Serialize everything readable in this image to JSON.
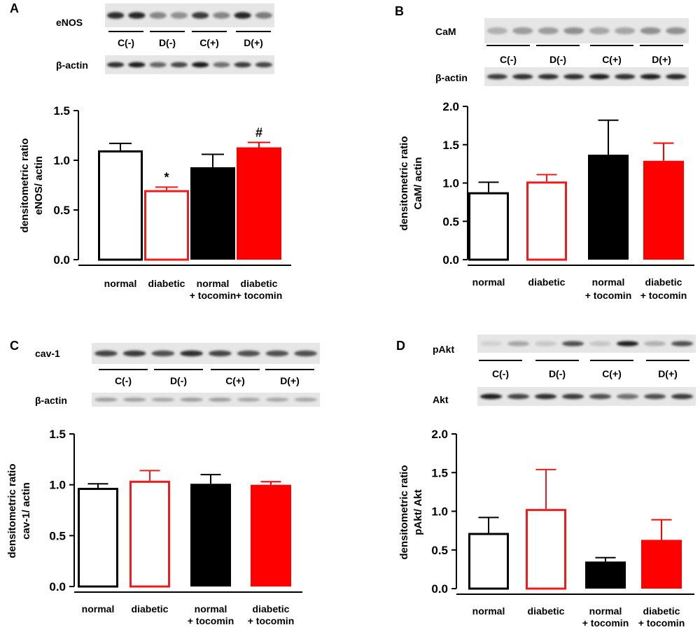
{
  "chart_data": [
    {
      "type": "bar",
      "panel_label": "A",
      "ylabel": [
        "densitometric ratio",
        "eNOS/ actin"
      ],
      "ylim": [
        0,
        1.5
      ],
      "ticks": [
        "0.0",
        "0.5",
        "1.0",
        "1.5"
      ],
      "tick_values": [
        0,
        0.5,
        1.0,
        1.5
      ],
      "categories": [
        [
          "normal"
        ],
        [
          "diabetic"
        ],
        [
          "normal",
          "+ tocomin"
        ],
        [
          "diabetic",
          "+ tocomin"
        ]
      ],
      "values": [
        1.1,
        0.7,
        0.93,
        1.13
      ],
      "errors": [
        0.07,
        0.03,
        0.13,
        0.05
      ],
      "annotations": [
        "",
        "*",
        "",
        "#"
      ],
      "blot": {
        "target": "eNOS",
        "control": "β-actin",
        "lanes": [
          "C(-)",
          "D(-)",
          "C(+)",
          "D(+)"
        ]
      }
    },
    {
      "type": "bar",
      "panel_label": "B",
      "ylabel": [
        "densitometric ratio",
        "CaM/ actin"
      ],
      "ylim": [
        0,
        2.0
      ],
      "ticks": [
        "0.0",
        "0.5",
        "1.0",
        "1.5",
        "2.0"
      ],
      "tick_values": [
        0,
        0.5,
        1.0,
        1.5,
        2.0
      ],
      "categories": [
        [
          "normal"
        ],
        [
          "diabetic"
        ],
        [
          "normal",
          "+ tocomin"
        ],
        [
          "diabetic",
          "+ tocomin"
        ]
      ],
      "values": [
        0.88,
        1.02,
        1.37,
        1.29
      ],
      "errors": [
        0.13,
        0.09,
        0.45,
        0.23
      ],
      "annotations": [
        "",
        "",
        "",
        ""
      ],
      "blot": {
        "target": "CaM",
        "control": "β-actin",
        "lanes": [
          "C(-)",
          "D(-)",
          "C(+)",
          "D(+)"
        ]
      }
    },
    {
      "type": "bar",
      "panel_label": "C",
      "ylabel": [
        "densitometric ratio",
        "cav-1/ actin"
      ],
      "ylim": [
        0,
        1.5
      ],
      "ticks": [
        "0.0",
        "0.5",
        "1.0",
        "1.5"
      ],
      "tick_values": [
        0,
        0.5,
        1.0,
        1.5
      ],
      "categories": [
        [
          "normal"
        ],
        [
          "diabetic"
        ],
        [
          "normal",
          "+ tocomin"
        ],
        [
          "diabetic",
          "+ tocomin"
        ]
      ],
      "values": [
        0.97,
        1.04,
        1.01,
        1.0
      ],
      "errors": [
        0.04,
        0.1,
        0.09,
        0.03
      ],
      "annotations": [
        "",
        "",
        "",
        ""
      ],
      "blot": {
        "target": "cav-1",
        "control": "β-actin",
        "lanes": [
          "C(-)",
          "D(-)",
          "C(+)",
          "D(+)"
        ]
      }
    },
    {
      "type": "bar",
      "panel_label": "D",
      "ylabel": [
        "densitometric ratio",
        "pAkt/ Akt"
      ],
      "ylim": [
        0,
        2.0
      ],
      "ticks": [
        "0.0",
        "0.5",
        "1.0",
        "1.5",
        "2.0"
      ],
      "tick_values": [
        0,
        0.5,
        1.0,
        1.5,
        2.0
      ],
      "categories": [
        [
          "normal"
        ],
        [
          "diabetic"
        ],
        [
          "normal",
          "+ tocomin"
        ],
        [
          "diabetic",
          "+ tocomin"
        ]
      ],
      "values": [
        0.72,
        1.03,
        0.35,
        0.63
      ],
      "errors": [
        0.2,
        0.51,
        0.05,
        0.26
      ],
      "annotations": [
        "",
        "",
        "",
        ""
      ],
      "blot": {
        "target": "pAkt",
        "control": "Akt",
        "lanes": [
          "C(-)",
          "D(-)",
          "C(+)",
          "D(+)"
        ]
      }
    }
  ],
  "colors": {
    "normal": "#000000",
    "diabetic": "#ee1c1c",
    "normal_tocomin": "#000000",
    "diabetic_tocomin": "#ff0000"
  },
  "bar_styles": [
    "outline",
    "outline",
    "filled",
    "filled"
  ]
}
